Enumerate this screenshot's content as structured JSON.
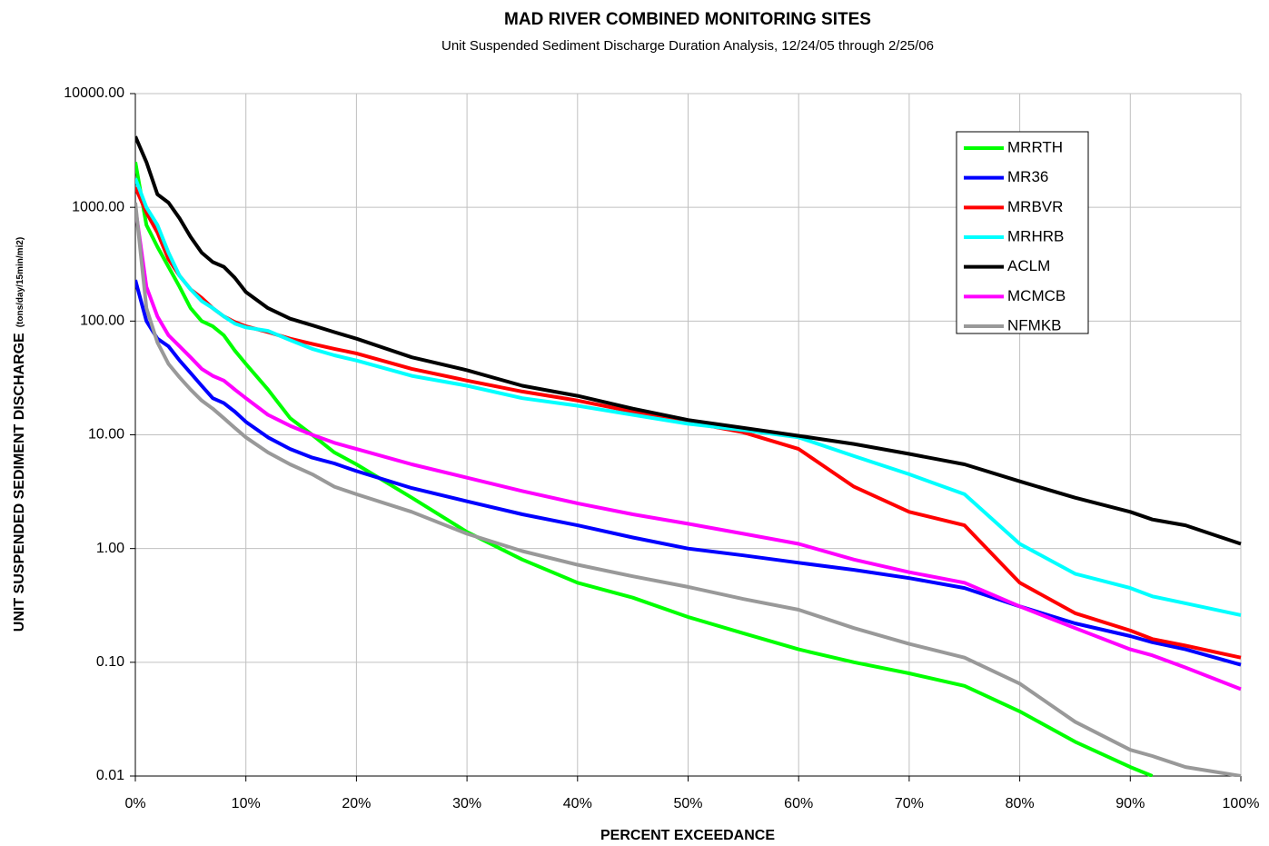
{
  "chart_data": {
    "type": "line",
    "title": "MAD RIVER COMBINED MONITORING SITES",
    "subtitle": "Unit Suspended Sediment Discharge Duration Analysis, 12/24/05 through 2/25/06",
    "xlabel": "PERCENT EXCEEDANCE",
    "ylabel": "UNIT SUSPENDED SEDIMENT DISCHARGE",
    "ylabel_unit": "(tons/day/15min/mi2)",
    "log_y": true,
    "grid": true,
    "legend": "upper right",
    "xlim": [
      0,
      100
    ],
    "xticks": [
      {
        "value": 0,
        "label": "0%"
      },
      {
        "value": 10,
        "label": "10%"
      },
      {
        "value": 20,
        "label": "20%"
      },
      {
        "value": 30,
        "label": "30%"
      },
      {
        "value": 40,
        "label": "40%"
      },
      {
        "value": 50,
        "label": "50%"
      },
      {
        "value": 60,
        "label": "60%"
      },
      {
        "value": 70,
        "label": "70%"
      },
      {
        "value": 80,
        "label": "80%"
      },
      {
        "value": 90,
        "label": "90%"
      },
      {
        "value": 100,
        "label": "100%"
      }
    ],
    "ylim": [
      0.01,
      10000
    ],
    "yticks": [
      {
        "value": 0.01,
        "label": "0.01"
      },
      {
        "value": 0.1,
        "label": "0.10"
      },
      {
        "value": 1,
        "label": "1.00"
      },
      {
        "value": 10,
        "label": "10.00"
      },
      {
        "value": 100,
        "label": "100.00"
      },
      {
        "value": 1000,
        "label": "1000.00"
      },
      {
        "value": 10000,
        "label": "10000.00"
      }
    ],
    "x": [
      0,
      1,
      2,
      3,
      4,
      5,
      6,
      7,
      8,
      9,
      10,
      12,
      14,
      16,
      18,
      20,
      25,
      30,
      35,
      40,
      45,
      50,
      55,
      60,
      65,
      70,
      75,
      80,
      85,
      90,
      92,
      95,
      100
    ],
    "series": [
      {
        "name": "MRRTH",
        "color": "#00ff00",
        "values": [
          2500,
          700,
          450,
          300,
          200,
          130,
          100,
          90,
          75,
          55,
          42,
          25,
          14,
          10,
          7,
          5.5,
          2.8,
          1.4,
          0.8,
          0.5,
          0.37,
          0.25,
          0.18,
          0.13,
          0.1,
          0.08,
          0.062,
          0.037,
          0.02,
          0.012,
          0.01,
          null,
          null
        ]
      },
      {
        "name": "MR36",
        "color": "#0000ff",
        "values": [
          230,
          100,
          70,
          60,
          45,
          35,
          27,
          21,
          19,
          16,
          13,
          9.5,
          7.5,
          6.3,
          5.6,
          4.8,
          3.4,
          2.6,
          2.0,
          1.6,
          1.25,
          1.0,
          0.87,
          0.75,
          0.65,
          0.55,
          0.45,
          0.31,
          0.22,
          0.17,
          0.15,
          0.13,
          0.095
        ]
      },
      {
        "name": "MRBVR",
        "color": "#ff0000",
        "values": [
          1500,
          900,
          600,
          350,
          250,
          190,
          160,
          130,
          110,
          98,
          90,
          80,
          70,
          63,
          57,
          52,
          38,
          30,
          24,
          20,
          16,
          13,
          10.5,
          7.5,
          3.5,
          2.1,
          1.6,
          0.5,
          0.27,
          0.19,
          0.16,
          0.14,
          0.11
        ]
      },
      {
        "name": "MRHRB",
        "color": "#00ffff",
        "values": [
          1800,
          1000,
          700,
          400,
          250,
          190,
          150,
          130,
          110,
          95,
          88,
          82,
          68,
          57,
          50,
          45,
          33,
          27,
          21,
          18,
          15,
          12.5,
          11,
          9.5,
          6.5,
          4.5,
          3,
          1.1,
          0.6,
          0.45,
          0.38,
          0.33,
          0.26
        ]
      },
      {
        "name": "ACLM",
        "color": "#000000",
        "values": [
          4200,
          2500,
          1300,
          1100,
          800,
          550,
          400,
          330,
          300,
          240,
          180,
          130,
          105,
          92,
          80,
          70,
          48,
          37,
          27,
          22,
          17,
          13.5,
          11.5,
          9.8,
          8.3,
          6.8,
          5.5,
          3.9,
          2.8,
          2.1,
          1.8,
          1.6,
          1.1
        ]
      },
      {
        "name": "MCMCB",
        "color": "#ff00ff",
        "values": [
          1000,
          200,
          110,
          75,
          60,
          48,
          38,
          33,
          30,
          25,
          21,
          15,
          12,
          10,
          8.5,
          7.5,
          5.5,
          4.2,
          3.2,
          2.5,
          2,
          1.65,
          1.35,
          1.1,
          0.8,
          0.62,
          0.5,
          0.31,
          0.2,
          0.13,
          0.115,
          0.09,
          0.058
        ]
      },
      {
        "name": "NFMKB",
        "color": "#999999",
        "values": [
          1100,
          130,
          65,
          42,
          32,
          25,
          20,
          17,
          14,
          11.5,
          9.5,
          7,
          5.5,
          4.5,
          3.5,
          3,
          2.1,
          1.35,
          0.95,
          0.72,
          0.57,
          0.46,
          0.36,
          0.29,
          0.2,
          0.145,
          0.11,
          0.065,
          0.03,
          0.017,
          0.015,
          0.012,
          0.01
        ]
      }
    ]
  }
}
